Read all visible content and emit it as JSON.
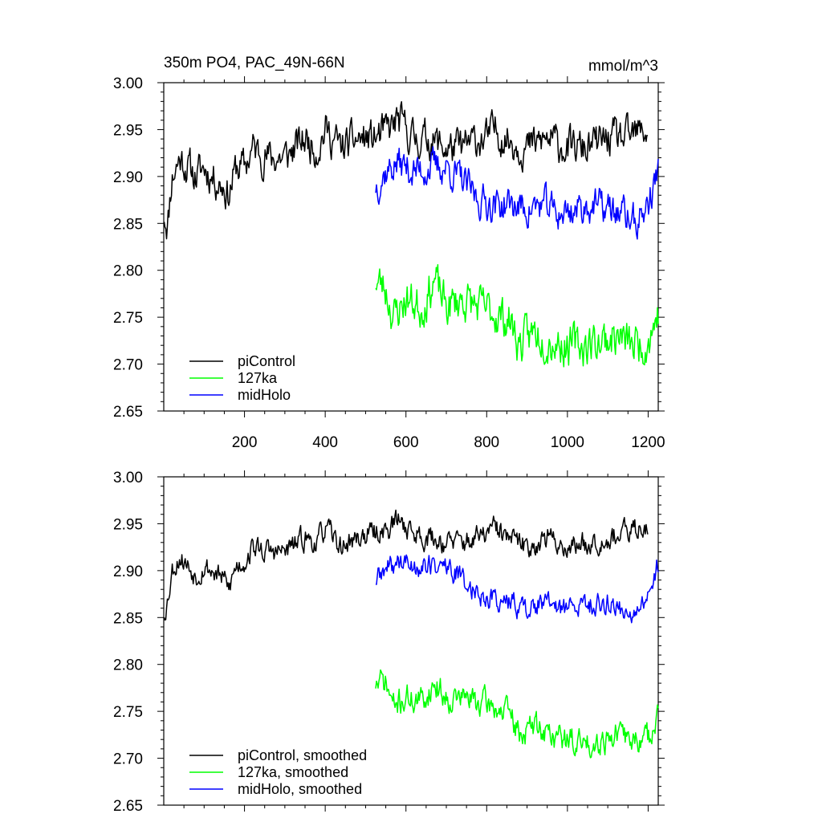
{
  "chart_data": [
    {
      "type": "line",
      "title": "350m PO4, PAC_49N-66N",
      "units": "mmol/m^3",
      "xlim": [
        0,
        1225
      ],
      "ylim": [
        2.65,
        3.0
      ],
      "yticks": [
        "3.00",
        "2.95",
        "2.90",
        "2.85",
        "2.80",
        "2.75",
        "2.70",
        "2.65"
      ],
      "xticks": [
        "200",
        "400",
        "600",
        "800",
        "1000",
        "1200"
      ],
      "legend_position": "bottom-left",
      "series": [
        {
          "name": "piControl",
          "color": "#000000",
          "x_start": 1,
          "x_end": 1200,
          "knots": [
            [
              1,
              2.86
            ],
            [
              10,
              2.85
            ],
            [
              20,
              2.9
            ],
            [
              40,
              2.92
            ],
            [
              60,
              2.91
            ],
            [
              80,
              2.9
            ],
            [
              100,
              2.91
            ],
            [
              120,
              2.9
            ],
            [
              150,
              2.89
            ],
            [
              160,
              2.88
            ],
            [
              180,
              2.91
            ],
            [
              200,
              2.91
            ],
            [
              220,
              2.93
            ],
            [
              260,
              2.92
            ],
            [
              300,
              2.92
            ],
            [
              350,
              2.94
            ],
            [
              380,
              2.93
            ],
            [
              400,
              2.95
            ],
            [
              440,
              2.93
            ],
            [
              480,
              2.94
            ],
            [
              520,
              2.94
            ],
            [
              560,
              2.95
            ],
            [
              580,
              2.96
            ],
            [
              620,
              2.94
            ],
            [
              660,
              2.94
            ],
            [
              700,
              2.93
            ],
            [
              740,
              2.93
            ],
            [
              780,
              2.94
            ],
            [
              800,
              2.94
            ],
            [
              820,
              2.95
            ],
            [
              850,
              2.94
            ],
            [
              900,
              2.93
            ],
            [
              950,
              2.94
            ],
            [
              1000,
              2.93
            ],
            [
              1050,
              2.93
            ],
            [
              1100,
              2.94
            ],
            [
              1150,
              2.94
            ],
            [
              1200,
              2.95
            ]
          ],
          "noise_amp": 0.016,
          "seed": 11
        },
        {
          "name": "127ka",
          "color": "#00ff00",
          "x_start": 525,
          "x_end": 1225,
          "knots": [
            [
              525,
              2.79
            ],
            [
              550,
              2.78
            ],
            [
              570,
              2.75
            ],
            [
              600,
              2.77
            ],
            [
              640,
              2.76
            ],
            [
              670,
              2.79
            ],
            [
              700,
              2.76
            ],
            [
              740,
              2.77
            ],
            [
              780,
              2.76
            ],
            [
              820,
              2.755
            ],
            [
              860,
              2.745
            ],
            [
              880,
              2.72
            ],
            [
              920,
              2.735
            ],
            [
              960,
              2.725
            ],
            [
              1000,
              2.72
            ],
            [
              1040,
              2.72
            ],
            [
              1080,
              2.725
            ],
            [
              1120,
              2.73
            ],
            [
              1160,
              2.72
            ],
            [
              1200,
              2.725
            ],
            [
              1225,
              2.755
            ]
          ],
          "noise_amp": 0.018,
          "seed": 23
        },
        {
          "name": "midHolo",
          "color": "#0000ff",
          "x_start": 525,
          "x_end": 1225,
          "knots": [
            [
              525,
              2.89
            ],
            [
              550,
              2.905
            ],
            [
              580,
              2.915
            ],
            [
              620,
              2.905
            ],
            [
              660,
              2.91
            ],
            [
              700,
              2.91
            ],
            [
              740,
              2.895
            ],
            [
              780,
              2.875
            ],
            [
              820,
              2.87
            ],
            [
              860,
              2.87
            ],
            [
              900,
              2.865
            ],
            [
              940,
              2.87
            ],
            [
              980,
              2.86
            ],
            [
              1020,
              2.865
            ],
            [
              1060,
              2.87
            ],
            [
              1100,
              2.865
            ],
            [
              1140,
              2.86
            ],
            [
              1170,
              2.85
            ],
            [
              1200,
              2.87
            ],
            [
              1225,
              2.905
            ]
          ],
          "noise_amp": 0.015,
          "seed": 37
        }
      ]
    },
    {
      "type": "line",
      "title": "",
      "units": "",
      "xlim": [
        0,
        1225
      ],
      "ylim": [
        2.65,
        3.0
      ],
      "yticks": [
        "3.00",
        "2.95",
        "2.90",
        "2.85",
        "2.80",
        "2.75",
        "2.70",
        "2.65"
      ],
      "xticks": [],
      "legend_position": "bottom-left",
      "series": [
        {
          "name": "piControl, smoothed",
          "color": "#000000",
          "x_start": 1,
          "x_end": 1200,
          "knots": [
            [
              1,
              2.855
            ],
            [
              10,
              2.87
            ],
            [
              20,
              2.9
            ],
            [
              40,
              2.915
            ],
            [
              60,
              2.905
            ],
            [
              80,
              2.895
            ],
            [
              100,
              2.905
            ],
            [
              120,
              2.9
            ],
            [
              150,
              2.89
            ],
            [
              160,
              2.88
            ],
            [
              180,
              2.905
            ],
            [
              200,
              2.91
            ],
            [
              220,
              2.925
            ],
            [
              260,
              2.92
            ],
            [
              300,
              2.92
            ],
            [
              350,
              2.935
            ],
            [
              380,
              2.93
            ],
            [
              400,
              2.945
            ],
            [
              440,
              2.925
            ],
            [
              480,
              2.935
            ],
            [
              520,
              2.94
            ],
            [
              560,
              2.945
            ],
            [
              580,
              2.955
            ],
            [
              620,
              2.94
            ],
            [
              660,
              2.935
            ],
            [
              700,
              2.93
            ],
            [
              740,
              2.93
            ],
            [
              780,
              2.935
            ],
            [
              800,
              2.94
            ],
            [
              820,
              2.945
            ],
            [
              850,
              2.935
            ],
            [
              900,
              2.925
            ],
            [
              950,
              2.935
            ],
            [
              1000,
              2.925
            ],
            [
              1050,
              2.93
            ],
            [
              1100,
              2.935
            ],
            [
              1150,
              2.94
            ],
            [
              1200,
              2.95
            ]
          ],
          "noise_amp": 0.01,
          "seed": 53
        },
        {
          "name": "127ka, smoothed",
          "color": "#00ff00",
          "x_start": 525,
          "x_end": 1225,
          "knots": [
            [
              525,
              2.78
            ],
            [
              550,
              2.78
            ],
            [
              570,
              2.755
            ],
            [
              600,
              2.765
            ],
            [
              640,
              2.76
            ],
            [
              670,
              2.78
            ],
            [
              700,
              2.765
            ],
            [
              740,
              2.765
            ],
            [
              780,
              2.76
            ],
            [
              820,
              2.755
            ],
            [
              860,
              2.745
            ],
            [
              880,
              2.725
            ],
            [
              920,
              2.735
            ],
            [
              960,
              2.725
            ],
            [
              1000,
              2.72
            ],
            [
              1040,
              2.715
            ],
            [
              1080,
              2.72
            ],
            [
              1120,
              2.725
            ],
            [
              1160,
              2.72
            ],
            [
              1200,
              2.72
            ],
            [
              1225,
              2.755
            ]
          ],
          "noise_amp": 0.012,
          "seed": 71
        },
        {
          "name": "midHolo, smoothed",
          "color": "#0000ff",
          "x_start": 525,
          "x_end": 1225,
          "knots": [
            [
              525,
              2.89
            ],
            [
              550,
              2.9
            ],
            [
              580,
              2.91
            ],
            [
              620,
              2.905
            ],
            [
              660,
              2.905
            ],
            [
              700,
              2.905
            ],
            [
              740,
              2.89
            ],
            [
              780,
              2.875
            ],
            [
              820,
              2.87
            ],
            [
              860,
              2.865
            ],
            [
              900,
              2.86
            ],
            [
              940,
              2.865
            ],
            [
              980,
              2.86
            ],
            [
              1020,
              2.86
            ],
            [
              1060,
              2.865
            ],
            [
              1100,
              2.865
            ],
            [
              1140,
              2.86
            ],
            [
              1170,
              2.85
            ],
            [
              1200,
              2.87
            ],
            [
              1225,
              2.91
            ]
          ],
          "noise_amp": 0.01,
          "seed": 89
        }
      ]
    }
  ]
}
